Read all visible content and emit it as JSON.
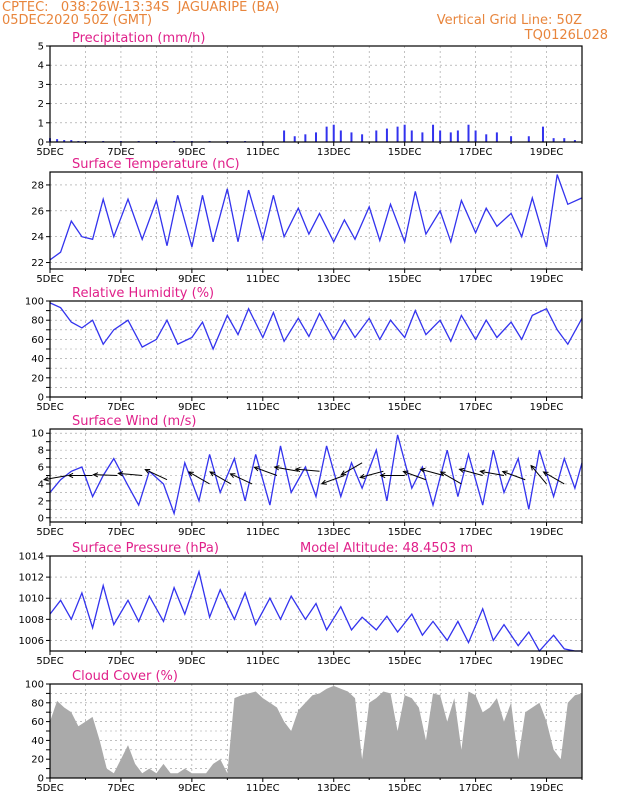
{
  "header": {
    "left_line1": "CPTEC:   038:26W-13:34S  JAGUARIPE (BA)",
    "left_line2": "05DEC2020 50Z (GMT)",
    "right_line1": "Vertical Grid Line: 50Z",
    "right_line2": "TQ0126L028"
  },
  "colors": {
    "title": "#e0208a",
    "header": "#e8853c",
    "series": "#3333ee",
    "bars": "#3333ee",
    "cloud": "#aaaaaa",
    "wind_arrow": "#000000"
  },
  "chart_data": [
    {
      "type": "bar",
      "title": "Precipitation (mm/h)",
      "x_ticks": [
        "5DEC",
        "7DEC",
        "9DEC",
        "11DEC",
        "13DEC",
        "15DEC",
        "17DEC",
        "19DEC"
      ],
      "ylim": [
        0,
        5
      ],
      "y_ticks": [
        0,
        1,
        2,
        3,
        4,
        5
      ],
      "grid": true,
      "series": [
        {
          "x": [
            5.0,
            5.2,
            5.4,
            5.6,
            5.8,
            6.0,
            6.5,
            7.0,
            7.5,
            8.0,
            8.5,
            9.0,
            9.5,
            10.0,
            10.5,
            11.0,
            11.6,
            11.9,
            12.2,
            12.5,
            12.8,
            13.0,
            13.2,
            13.5,
            13.8,
            14.2,
            14.5,
            14.8,
            15.0,
            15.2,
            15.5,
            15.8,
            16.0,
            16.3,
            16.5,
            16.8,
            17.0,
            17.3,
            17.6,
            18.0,
            18.5,
            18.9,
            19.2,
            19.5,
            19.8
          ],
          "values": [
            0.2,
            0.15,
            0.1,
            0.1,
            0.05,
            0.05,
            0.05,
            0.05,
            0.05,
            0.05,
            0.05,
            0.05,
            0.05,
            0.05,
            0.05,
            0.05,
            0.6,
            0.3,
            0.4,
            0.5,
            0.8,
            0.9,
            0.6,
            0.5,
            0.4,
            0.6,
            0.7,
            0.8,
            0.9,
            0.6,
            0.5,
            0.9,
            0.6,
            0.5,
            0.6,
            0.9,
            0.6,
            0.4,
            0.5,
            0.3,
            0.3,
            0.8,
            0.2,
            0.2,
            0.1
          ]
        }
      ]
    },
    {
      "type": "line",
      "title": "Surface Temperature (nC)",
      "x_ticks": [
        "5DEC",
        "7DEC",
        "9DEC",
        "11DEC",
        "13DEC",
        "15DEC",
        "17DEC",
        "19DEC"
      ],
      "ylim": [
        21.5,
        29
      ],
      "y_ticks": [
        22,
        24,
        26,
        28
      ],
      "grid": true,
      "series": [
        {
          "name": "",
          "x": [
            5.0,
            5.3,
            5.6,
            5.9,
            6.2,
            6.5,
            6.8,
            7.2,
            7.6,
            8.0,
            8.3,
            8.6,
            9.0,
            9.3,
            9.6,
            10.0,
            10.3,
            10.6,
            11.0,
            11.3,
            11.6,
            12.0,
            12.3,
            12.6,
            13.0,
            13.3,
            13.6,
            14.0,
            14.3,
            14.6,
            15.0,
            15.3,
            15.6,
            16.0,
            16.3,
            16.6,
            17.0,
            17.3,
            17.6,
            18.0,
            18.3,
            18.6,
            19.0,
            19.3,
            19.6,
            20.0
          ],
          "values": [
            22.2,
            22.8,
            25.2,
            24.0,
            23.8,
            26.9,
            24.0,
            26.9,
            23.8,
            26.8,
            23.3,
            27.2,
            23.2,
            27.2,
            23.6,
            27.7,
            23.6,
            27.6,
            23.8,
            27.2,
            24.0,
            26.2,
            24.2,
            25.8,
            23.6,
            25.3,
            23.8,
            26.3,
            23.7,
            26.5,
            23.6,
            27.5,
            24.2,
            26.0,
            23.6,
            26.8,
            24.3,
            26.2,
            24.8,
            25.8,
            24.0,
            27.0,
            23.2,
            28.8,
            26.5,
            27.0
          ]
        }
      ]
    },
    {
      "type": "line",
      "title": "Relative Humidity (%)",
      "x_ticks": [
        "5DEC",
        "7DEC",
        "9DEC",
        "11DEC",
        "13DEC",
        "15DEC",
        "17DEC",
        "19DEC"
      ],
      "ylim": [
        0,
        100
      ],
      "y_ticks": [
        0,
        10,
        20,
        30,
        40,
        50,
        60,
        70,
        80,
        90,
        100
      ],
      "y_labels": [
        0,
        20,
        40,
        60,
        80,
        100
      ],
      "grid": true,
      "series": [
        {
          "name": "",
          "x": [
            5.0,
            5.3,
            5.6,
            5.9,
            6.2,
            6.5,
            6.8,
            7.2,
            7.6,
            8.0,
            8.3,
            8.6,
            9.0,
            9.3,
            9.6,
            10.0,
            10.3,
            10.6,
            11.0,
            11.3,
            11.6,
            12.0,
            12.3,
            12.6,
            13.0,
            13.3,
            13.6,
            14.0,
            14.3,
            14.6,
            15.0,
            15.3,
            15.6,
            16.0,
            16.3,
            16.6,
            17.0,
            17.3,
            17.6,
            18.0,
            18.3,
            18.6,
            19.0,
            19.3,
            19.6,
            20.0
          ],
          "values": [
            98,
            93,
            78,
            72,
            80,
            55,
            70,
            80,
            52,
            60,
            80,
            55,
            62,
            78,
            50,
            85,
            65,
            92,
            62,
            88,
            58,
            82,
            63,
            87,
            60,
            80,
            62,
            82,
            60,
            80,
            62,
            90,
            65,
            80,
            58,
            85,
            60,
            80,
            62,
            78,
            60,
            85,
            92,
            70,
            55,
            82
          ]
        }
      ]
    },
    {
      "type": "line",
      "title": "Surface Wind (m/s)",
      "x_ticks": [
        "5DEC",
        "7DEC",
        "9DEC",
        "11DEC",
        "13DEC",
        "15DEC",
        "17DEC",
        "19DEC"
      ],
      "ylim": [
        -0.5,
        10.5
      ],
      "y_ticks": [
        0,
        1,
        2,
        3,
        4,
        5,
        6,
        7,
        8,
        9,
        10
      ],
      "y_labels": [
        0,
        2,
        4,
        6,
        8,
        10
      ],
      "grid": true,
      "series": [
        {
          "name": "",
          "x": [
            5.0,
            5.3,
            5.6,
            5.9,
            6.2,
            6.5,
            6.8,
            7.2,
            7.5,
            7.8,
            8.2,
            8.5,
            8.8,
            9.2,
            9.5,
            9.8,
            10.2,
            10.5,
            10.8,
            11.2,
            11.5,
            11.8,
            12.2,
            12.5,
            12.8,
            13.2,
            13.5,
            13.8,
            14.2,
            14.5,
            14.8,
            15.2,
            15.5,
            15.8,
            16.2,
            16.5,
            16.8,
            17.2,
            17.5,
            17.8,
            18.2,
            18.5,
            18.8,
            19.2,
            19.5,
            19.8,
            20.0
          ],
          "values": [
            3.0,
            4.5,
            5.5,
            6.0,
            2.5,
            5.0,
            7.0,
            3.8,
            1.5,
            5.5,
            4.0,
            0.5,
            6.5,
            2.0,
            7.5,
            3.0,
            7.0,
            2.0,
            7.5,
            1.5,
            8.5,
            3.0,
            6.0,
            2.5,
            8.5,
            2.5,
            6.5,
            3.5,
            8.0,
            2.0,
            9.8,
            3.5,
            6.0,
            1.5,
            8.0,
            2.5,
            7.5,
            1.5,
            8.0,
            3.0,
            7.0,
            1.0,
            8.0,
            2.5,
            7.0,
            3.5,
            6.5
          ]
        }
      ],
      "wind_arrows": [
        {
          "x": 5.5,
          "speed": 5.0,
          "dir_deg": 190
        },
        {
          "x": 6.2,
          "speed": 5.0,
          "dir_deg": 180
        },
        {
          "x": 6.9,
          "speed": 5.0,
          "dir_deg": 178
        },
        {
          "x": 7.6,
          "speed": 5.0,
          "dir_deg": 175
        },
        {
          "x": 8.3,
          "speed": 4.5,
          "dir_deg": 155
        },
        {
          "x": 9.5,
          "speed": 4.0,
          "dir_deg": 150
        },
        {
          "x": 10.1,
          "speed": 4.0,
          "dir_deg": 150
        },
        {
          "x": 10.7,
          "speed": 4.0,
          "dir_deg": 155
        },
        {
          "x": 11.4,
          "speed": 5.0,
          "dir_deg": 160
        },
        {
          "x": 12.0,
          "speed": 5.5,
          "dir_deg": 170
        },
        {
          "x": 12.6,
          "speed": 5.5,
          "dir_deg": 175
        },
        {
          "x": 13.3,
          "speed": 5.0,
          "dir_deg": 200
        },
        {
          "x": 13.8,
          "speed": 6.5,
          "dir_deg": 210
        },
        {
          "x": 14.4,
          "speed": 5.5,
          "dir_deg": 195
        },
        {
          "x": 15.0,
          "speed": 5.0,
          "dir_deg": 180
        },
        {
          "x": 15.6,
          "speed": 4.5,
          "dir_deg": 160
        },
        {
          "x": 16.1,
          "speed": 5.0,
          "dir_deg": 165
        },
        {
          "x": 16.6,
          "speed": 4.0,
          "dir_deg": 150
        },
        {
          "x": 17.2,
          "speed": 5.0,
          "dir_deg": 165
        },
        {
          "x": 17.8,
          "speed": 5.0,
          "dir_deg": 170
        },
        {
          "x": 18.4,
          "speed": 4.5,
          "dir_deg": 160
        },
        {
          "x": 19.0,
          "speed": 4.0,
          "dir_deg": 130
        },
        {
          "x": 19.5,
          "speed": 4.0,
          "dir_deg": 150
        }
      ]
    },
    {
      "type": "line",
      "title": "Surface Pressure (hPa)",
      "annotation": "Model Altitude: 48.4503 m",
      "x_ticks": [
        "5DEC",
        "7DEC",
        "9DEC",
        "11DEC",
        "13DEC",
        "15DEC",
        "17DEC",
        "19DEC"
      ],
      "ylim": [
        1005,
        1014
      ],
      "y_ticks": [
        1006,
        1008,
        1010,
        1012,
        1014
      ],
      "grid": true,
      "series": [
        {
          "name": "",
          "x": [
            5.0,
            5.3,
            5.6,
            5.9,
            6.2,
            6.5,
            6.8,
            7.2,
            7.5,
            7.8,
            8.2,
            8.5,
            8.8,
            9.2,
            9.5,
            9.8,
            10.2,
            10.5,
            10.8,
            11.2,
            11.5,
            11.8,
            12.2,
            12.5,
            12.8,
            13.2,
            13.5,
            13.8,
            14.2,
            14.5,
            14.8,
            15.2,
            15.5,
            15.8,
            16.2,
            16.5,
            16.8,
            17.2,
            17.5,
            17.8,
            18.2,
            18.5,
            18.8,
            19.2,
            19.5,
            19.8,
            20.0
          ],
          "values": [
            1008.5,
            1009.8,
            1008.0,
            1010.5,
            1007.2,
            1011.2,
            1007.5,
            1009.8,
            1007.8,
            1010.2,
            1007.8,
            1011.0,
            1008.5,
            1012.5,
            1008.2,
            1010.8,
            1008.0,
            1010.5,
            1007.5,
            1010.0,
            1008.0,
            1010.2,
            1008.0,
            1009.5,
            1007.0,
            1009.2,
            1007.0,
            1008.2,
            1007.0,
            1008.3,
            1006.8,
            1008.5,
            1006.5,
            1007.8,
            1006.0,
            1007.8,
            1005.8,
            1009.0,
            1006.0,
            1007.5,
            1005.5,
            1006.8,
            1004.8,
            1006.5,
            1005.2,
            1005.0,
            1005.0
          ]
        }
      ]
    },
    {
      "type": "area",
      "title": "Cloud Cover (%)",
      "x_ticks": [
        "5DEC",
        "7DEC",
        "9DEC",
        "11DEC",
        "13DEC",
        "15DEC",
        "17DEC",
        "19DEC"
      ],
      "ylim": [
        0,
        100
      ],
      "y_ticks": [
        0,
        10,
        20,
        30,
        40,
        50,
        60,
        70,
        80,
        90,
        100
      ],
      "y_labels": [
        0,
        20,
        40,
        60,
        80,
        100
      ],
      "grid": true,
      "series": [
        {
          "name": "",
          "x": [
            5.0,
            5.2,
            5.4,
            5.6,
            5.8,
            6.0,
            6.2,
            6.4,
            6.6,
            6.8,
            7.0,
            7.2,
            7.4,
            7.6,
            7.8,
            8.0,
            8.2,
            8.4,
            8.6,
            8.8,
            9.0,
            9.2,
            9.4,
            9.6,
            9.8,
            10.0,
            10.2,
            10.4,
            10.6,
            10.8,
            11.0,
            11.2,
            11.4,
            11.6,
            11.8,
            12.0,
            12.2,
            12.4,
            12.6,
            12.8,
            13.0,
            13.2,
            13.4,
            13.6,
            13.8,
            14.0,
            14.2,
            14.4,
            14.6,
            14.8,
            15.0,
            15.2,
            15.4,
            15.6,
            15.8,
            16.0,
            16.2,
            16.4,
            16.6,
            16.8,
            17.0,
            17.2,
            17.4,
            17.6,
            17.8,
            18.0,
            18.2,
            18.4,
            18.6,
            18.8,
            19.0,
            19.2,
            19.4,
            19.6,
            19.8,
            20.0
          ],
          "values": [
            60,
            82,
            75,
            70,
            55,
            60,
            65,
            40,
            10,
            5,
            20,
            35,
            15,
            5,
            10,
            5,
            15,
            5,
            5,
            10,
            5,
            5,
            5,
            15,
            20,
            5,
            85,
            88,
            90,
            92,
            85,
            80,
            75,
            60,
            50,
            72,
            80,
            88,
            90,
            95,
            98,
            95,
            92,
            85,
            20,
            80,
            85,
            92,
            90,
            50,
            88,
            85,
            75,
            40,
            90,
            88,
            60,
            85,
            30,
            92,
            88,
            70,
            75,
            85,
            60,
            80,
            20,
            70,
            75,
            80,
            60,
            30,
            20,
            80,
            88,
            90
          ]
        }
      ]
    }
  ]
}
